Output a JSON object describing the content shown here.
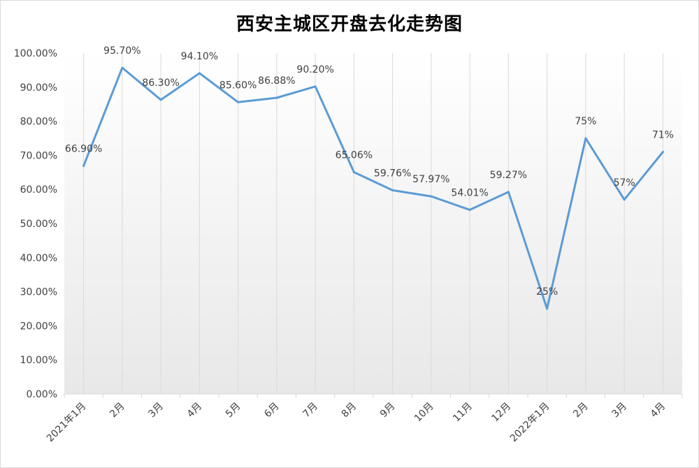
{
  "chart_data": {
    "type": "line",
    "title": "西安主城区开盘去化走势图",
    "xlabel": "",
    "ylabel": "",
    "ylim": [
      0,
      100
    ],
    "grid": "vertical",
    "legend": "none",
    "categories": [
      "2021年1月",
      "2月",
      "3月",
      "4月",
      "5月",
      "6月",
      "7月",
      "8月",
      "9月",
      "10月",
      "11月",
      "12月",
      "2022年1月",
      "2月",
      "3月",
      "4月"
    ],
    "y_ticks": [
      "0.00%",
      "10.00%",
      "20.00%",
      "30.00%",
      "40.00%",
      "50.00%",
      "60.00%",
      "70.00%",
      "80.00%",
      "90.00%",
      "100.00%"
    ],
    "series": [
      {
        "values": [
          66.9,
          95.7,
          86.3,
          94.1,
          85.6,
          86.88,
          90.2,
          65.06,
          59.76,
          57.97,
          54.01,
          59.27,
          25,
          75,
          57,
          71
        ],
        "labels": [
          "66.90%",
          "95.70%",
          "86.30%",
          "94.10%",
          "85.60%",
          "86.88%",
          "90.20%",
          "65.06%",
          "59.76%",
          "57.97%",
          "54.01%",
          "59.27%",
          "25%",
          "75%",
          "57%",
          "71%"
        ]
      }
    ],
    "colors": {
      "line": "#5b9bd5",
      "gridline": "#d9d9d9",
      "text": "#404040"
    }
  }
}
